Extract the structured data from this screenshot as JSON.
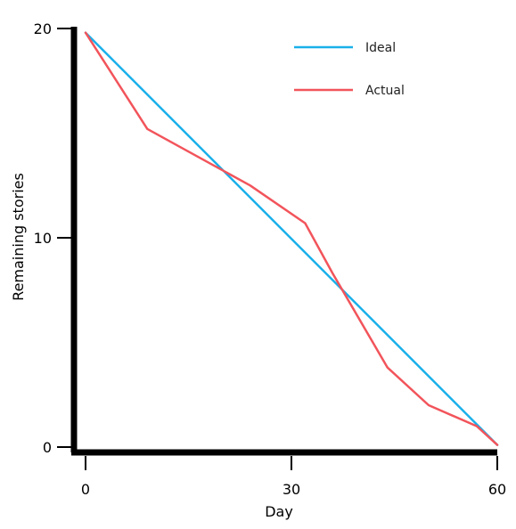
{
  "chart_data": {
    "type": "line",
    "title": "",
    "xlabel": "Day",
    "ylabel": "Remaining stories",
    "xlim": [
      0,
      60
    ],
    "ylim": [
      0,
      20
    ],
    "x_ticks": [
      0,
      30,
      60
    ],
    "y_ticks": [
      0,
      10,
      20
    ],
    "grid": false,
    "legend_position": "top-right",
    "series": [
      {
        "name": "Ideal",
        "color": "#1ab0ea",
        "x": [
          0,
          60
        ],
        "y": [
          19.8,
          0.1
        ]
      },
      {
        "name": "Actual",
        "color": "#f2545b",
        "x": [
          0,
          9,
          24,
          32,
          36,
          44,
          50,
          57,
          60
        ],
        "y": [
          19.8,
          15.2,
          12.5,
          10.7,
          8.3,
          3.8,
          2.0,
          1.0,
          0.1
        ]
      }
    ]
  }
}
